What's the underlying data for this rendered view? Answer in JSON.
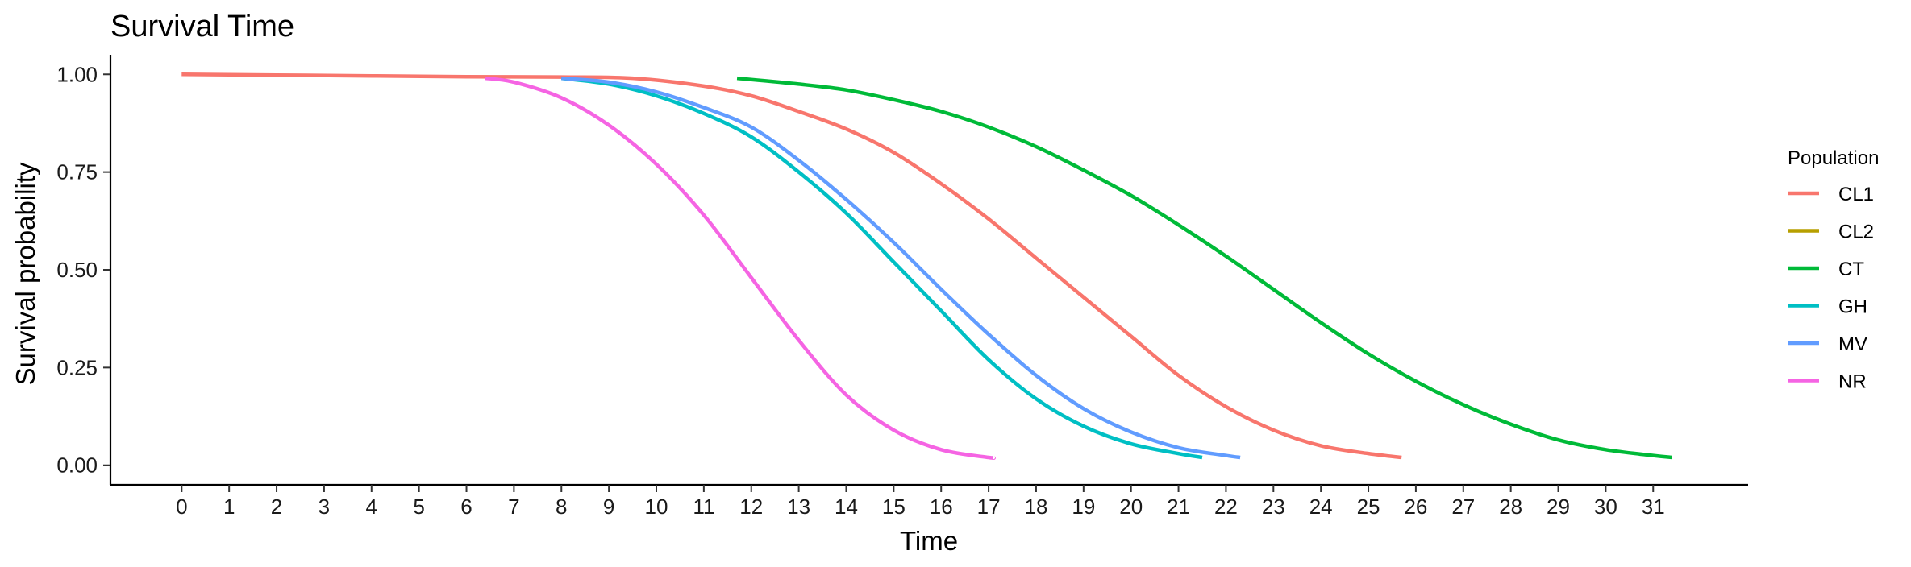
{
  "chart_data": {
    "type": "line",
    "title": "Survival Time",
    "xlabel": "Time",
    "ylabel": "Survival probability",
    "xlim": [
      -1.5,
      33.0
    ],
    "ylim": [
      -0.05,
      1.05
    ],
    "x_ticks": [
      0,
      1,
      2,
      3,
      4,
      5,
      6,
      7,
      8,
      9,
      10,
      11,
      12,
      13,
      14,
      15,
      16,
      17,
      18,
      19,
      20,
      21,
      22,
      23,
      24,
      25,
      26,
      27,
      28,
      29,
      30,
      31
    ],
    "y_ticks": [
      0.0,
      0.25,
      0.5,
      0.75,
      1.0
    ],
    "y_tick_labels": [
      "0.00",
      "0.25",
      "0.50",
      "0.75",
      "1.00"
    ],
    "grid": false,
    "legend": {
      "title": "Population",
      "position": "right"
    },
    "series": [
      {
        "name": "CL1",
        "color": "#F8766D",
        "x": [
          0,
          2,
          4,
          6,
          8,
          9.5,
          11,
          12,
          13,
          14,
          15,
          16,
          17,
          18,
          19,
          20,
          21,
          22,
          23,
          24,
          25,
          25.7
        ],
        "y": [
          1.0,
          0.998,
          0.996,
          0.994,
          0.993,
          0.99,
          0.97,
          0.945,
          0.905,
          0.86,
          0.8,
          0.72,
          0.63,
          0.53,
          0.43,
          0.33,
          0.23,
          0.15,
          0.09,
          0.05,
          0.03,
          0.02
        ]
      },
      {
        "name": "CL2",
        "color": "#B79F00",
        "x": [],
        "y": []
      },
      {
        "name": "CT",
        "color": "#00BA38",
        "x": [
          11.7,
          13,
          14,
          15,
          16,
          17,
          18,
          19,
          20,
          21,
          22,
          23,
          24,
          25,
          26,
          27,
          28,
          29,
          30,
          31,
          31.4
        ],
        "y": [
          0.99,
          0.975,
          0.96,
          0.935,
          0.905,
          0.865,
          0.815,
          0.755,
          0.69,
          0.615,
          0.535,
          0.45,
          0.365,
          0.285,
          0.215,
          0.155,
          0.105,
          0.065,
          0.04,
          0.025,
          0.02
        ]
      },
      {
        "name": "GH",
        "color": "#00BFC4",
        "x": [
          8,
          9,
          10,
          11,
          12,
          13,
          14,
          15,
          16,
          17,
          18,
          19,
          20,
          21,
          21.5
        ],
        "y": [
          0.99,
          0.975,
          0.945,
          0.9,
          0.84,
          0.75,
          0.645,
          0.52,
          0.395,
          0.27,
          0.17,
          0.1,
          0.055,
          0.03,
          0.02
        ]
      },
      {
        "name": "MV",
        "color": "#619CFF",
        "x": [
          8,
          9,
          10,
          11,
          12,
          13,
          14,
          15,
          16,
          17,
          18,
          19,
          20,
          21,
          22,
          22.3
        ],
        "y": [
          0.99,
          0.98,
          0.955,
          0.915,
          0.865,
          0.78,
          0.68,
          0.57,
          0.45,
          0.335,
          0.23,
          0.145,
          0.085,
          0.045,
          0.025,
          0.02
        ]
      },
      {
        "name": "NR",
        "color": "#F564E3",
        "x": [
          6.4,
          7,
          8,
          9,
          10,
          11,
          12,
          13,
          14,
          15,
          16,
          17,
          17.1
        ],
        "y": [
          0.99,
          0.98,
          0.94,
          0.87,
          0.77,
          0.64,
          0.48,
          0.32,
          0.18,
          0.09,
          0.04,
          0.02,
          0.02
        ]
      }
    ]
  }
}
